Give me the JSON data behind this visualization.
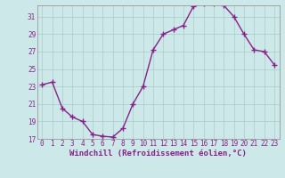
{
  "x": [
    0,
    1,
    2,
    3,
    4,
    5,
    6,
    7,
    8,
    9,
    10,
    11,
    12,
    13,
    14,
    15,
    16,
    17,
    18,
    19,
    20,
    21,
    22,
    23
  ],
  "y": [
    23.2,
    23.5,
    20.5,
    19.5,
    19.0,
    17.5,
    17.3,
    17.2,
    18.2,
    21.0,
    23.0,
    27.2,
    29.0,
    29.5,
    30.0,
    32.2,
    32.5,
    32.5,
    32.3,
    31.0,
    29.0,
    27.2,
    27.0,
    25.5
  ],
  "line_color": "#882288",
  "marker": "+",
  "markersize": 4,
  "xlabel": "Windchill (Refroidissement éolien,°C)",
  "ylim": [
    17,
    32
  ],
  "xlim": [
    -0.5,
    23.5
  ],
  "yticks": [
    17,
    19,
    21,
    23,
    25,
    27,
    29,
    31
  ],
  "xticks": [
    0,
    1,
    2,
    3,
    4,
    5,
    6,
    7,
    8,
    9,
    10,
    11,
    12,
    13,
    14,
    15,
    16,
    17,
    18,
    19,
    20,
    21,
    22,
    23
  ],
  "bg_color": "#cce8e8",
  "grid_color": "#aacccc",
  "tick_fontsize": 5.5,
  "xlabel_fontsize": 6.5
}
